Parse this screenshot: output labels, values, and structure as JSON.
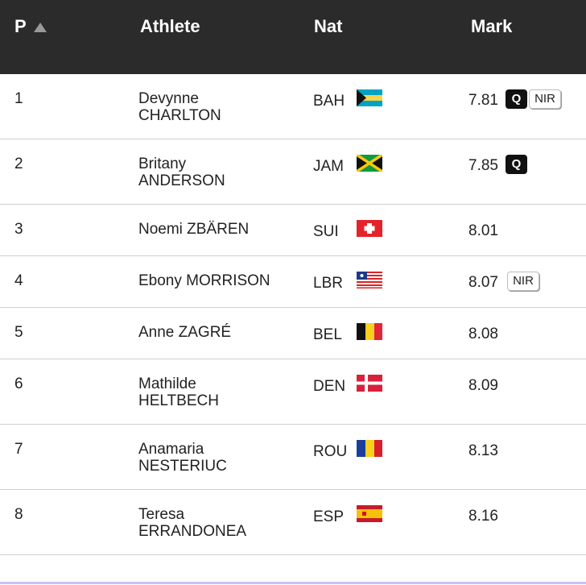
{
  "table": {
    "header": [
      "P",
      "Athlete",
      "Nat",
      "Mark"
    ],
    "rows": [
      {
        "place": "1",
        "name": [
          "Devynne",
          "CHARLTON"
        ],
        "nat": "BAH",
        "mark": "7.81",
        "badges": [
          "Q",
          "NIR"
        ]
      },
      {
        "place": "2",
        "name": [
          "Britany",
          "ANDERSON"
        ],
        "nat": "JAM",
        "mark": "7.85",
        "badges": [
          "Q"
        ]
      },
      {
        "place": "3",
        "name": [
          "Noemi ZBÄREN"
        ],
        "nat": "SUI",
        "mark": "8.01",
        "badges": []
      },
      {
        "place": "4",
        "name": [
          "Ebony MORRISON"
        ],
        "nat": "LBR",
        "mark": "8.07",
        "badges": [
          "NIR"
        ]
      },
      {
        "place": "5",
        "name": [
          "Anne ZAGRÉ"
        ],
        "nat": "BEL",
        "mark": "8.08",
        "badges": []
      },
      {
        "place": "6",
        "name": [
          "Mathilde",
          "HELTBECH"
        ],
        "nat": "DEN",
        "mark": "8.09",
        "badges": []
      },
      {
        "place": "7",
        "name": [
          "Anamaria",
          "NESTERIUC"
        ],
        "nat": "ROU",
        "mark": "8.13",
        "badges": []
      },
      {
        "place": "8",
        "name": [
          "Teresa",
          "ERRANDONEA"
        ],
        "nat": "ESP",
        "mark": "8.16",
        "badges": []
      }
    ]
  }
}
